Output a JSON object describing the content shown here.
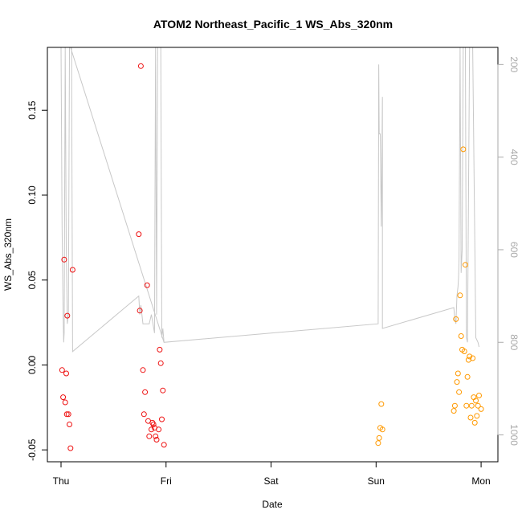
{
  "chart_data": {
    "type": "scatter",
    "title": "ATOM2 Northeast_Pacific_1 WS_Abs_320nm",
    "xlabel": "Date",
    "ylabel": "WS_Abs_320nm",
    "x_ticks": [
      {
        "day": 0,
        "label": "Thu"
      },
      {
        "day": 1,
        "label": "Fri"
      },
      {
        "day": 2,
        "label": "Sat"
      },
      {
        "day": 3,
        "label": "Sun"
      },
      {
        "day": 4,
        "label": "Mon"
      }
    ],
    "xlim": [
      -0.13,
      4.16
    ],
    "ylim": [
      -0.057,
      0.187
    ],
    "y_ticks": [
      -0.05,
      0.0,
      0.05,
      0.1,
      0.15
    ],
    "y_tick_labels": [
      "-0.05",
      "0.00",
      "0.05",
      "0.10",
      "0.15"
    ],
    "y2_label": "",
    "y2_ticks": [
      200,
      400,
      600,
      800,
      1000
    ],
    "y2_tick_labels": [
      "200",
      "400",
      "600",
      "800",
      "1000"
    ],
    "y2_lim": [
      1058,
      163
    ],
    "series": [
      {
        "color": "#ee1111",
        "points": [
          [
            0.01,
            -0.003
          ],
          [
            0.02,
            -0.019
          ],
          [
            0.03,
            0.062
          ],
          [
            0.04,
            -0.022
          ],
          [
            0.05,
            -0.005
          ],
          [
            0.055,
            -0.029
          ],
          [
            0.06,
            0.029
          ],
          [
            0.07,
            -0.029
          ],
          [
            0.08,
            -0.035
          ],
          [
            0.09,
            -0.049
          ],
          [
            0.11,
            0.056
          ],
          [
            0.74,
            0.077
          ],
          [
            0.75,
            0.032
          ],
          [
            0.76,
            0.176
          ],
          [
            0.78,
            -0.003
          ],
          [
            0.79,
            -0.029
          ],
          [
            0.8,
            -0.016
          ],
          [
            0.82,
            0.047
          ],
          [
            0.83,
            -0.033
          ],
          [
            0.84,
            -0.042
          ],
          [
            0.86,
            -0.038
          ],
          [
            0.87,
            -0.034
          ],
          [
            0.88,
            -0.035
          ],
          [
            0.89,
            -0.037
          ],
          [
            0.9,
            -0.042
          ],
          [
            0.91,
            -0.044
          ],
          [
            0.93,
            -0.038
          ],
          [
            0.94,
            0.009
          ],
          [
            0.95,
            0.001
          ],
          [
            0.96,
            -0.032
          ],
          [
            0.97,
            -0.015
          ],
          [
            0.98,
            -0.047
          ]
        ]
      },
      {
        "color": "#ff9900",
        "points": [
          [
            3.02,
            -0.046
          ],
          [
            3.03,
            -0.043
          ],
          [
            3.04,
            -0.037
          ],
          [
            3.05,
            -0.023
          ],
          [
            3.06,
            -0.038
          ],
          [
            3.74,
            -0.027
          ],
          [
            3.75,
            -0.024
          ],
          [
            3.76,
            0.027
          ],
          [
            3.77,
            -0.01
          ],
          [
            3.78,
            -0.005
          ],
          [
            3.79,
            -0.016
          ],
          [
            3.8,
            0.041
          ],
          [
            3.81,
            0.017
          ],
          [
            3.82,
            0.009
          ],
          [
            3.83,
            0.127
          ],
          [
            3.84,
            0.008
          ],
          [
            3.85,
            0.059
          ],
          [
            3.86,
            -0.024
          ],
          [
            3.87,
            -0.007
          ],
          [
            3.88,
            0.003
          ],
          [
            3.89,
            0.005
          ],
          [
            3.9,
            -0.031
          ],
          [
            3.91,
            -0.024
          ],
          [
            3.92,
            0.004
          ],
          [
            3.93,
            -0.019
          ],
          [
            3.94,
            -0.034
          ],
          [
            3.95,
            -0.021
          ],
          [
            3.96,
            -0.03
          ],
          [
            3.97,
            -0.024
          ],
          [
            3.98,
            -0.018
          ],
          [
            4.0,
            -0.026
          ]
        ]
      }
    ],
    "line_series": {
      "color": "#c8c8c8",
      "axis": "right",
      "points": [
        [
          0.0,
          163
        ],
        [
          0.01,
          550
        ],
        [
          0.02,
          740
        ],
        [
          0.025,
          800
        ],
        [
          0.03,
          780
        ],
        [
          0.04,
          163
        ],
        [
          0.05,
          600
        ],
        [
          0.06,
          760
        ],
        [
          0.07,
          740
        ],
        [
          0.08,
          163
        ],
        [
          0.1,
          163
        ],
        [
          0.11,
          820
        ],
        [
          0.74,
          700
        ],
        [
          0.75,
          740
        ],
        [
          0.76,
          720
        ],
        [
          0.78,
          760
        ],
        [
          0.8,
          760
        ],
        [
          0.84,
          760
        ],
        [
          0.86,
          740
        ],
        [
          0.89,
          780
        ],
        [
          0.9,
          163
        ],
        [
          0.91,
          740
        ],
        [
          0.92,
          163
        ],
        [
          0.95,
          163
        ],
        [
          0.96,
          790
        ],
        [
          0.97,
          770
        ],
        [
          0.98,
          800
        ],
        [
          0.09,
          163
        ],
        [
          0.98,
          800
        ],
        [
          3.02,
          760
        ],
        [
          3.025,
          200
        ],
        [
          3.03,
          350
        ],
        [
          3.04,
          350
        ],
        [
          3.05,
          550
        ],
        [
          3.06,
          270
        ],
        [
          3.06,
          770
        ],
        [
          3.74,
          725
        ],
        [
          3.75,
          750
        ],
        [
          3.76,
          760
        ],
        [
          3.77,
          700
        ],
        [
          3.78,
          680
        ],
        [
          3.785,
          660
        ],
        [
          3.79,
          620
        ],
        [
          3.8,
          163
        ],
        [
          3.81,
          650
        ],
        [
          3.82,
          600
        ],
        [
          3.83,
          163
        ],
        [
          3.85,
          163
        ],
        [
          3.86,
          790
        ],
        [
          3.87,
          800
        ],
        [
          3.89,
          163
        ],
        [
          3.92,
          163
        ],
        [
          3.95,
          790
        ],
        [
          3.97,
          800
        ],
        [
          3.98,
          810
        ]
      ]
    },
    "grid": false
  }
}
